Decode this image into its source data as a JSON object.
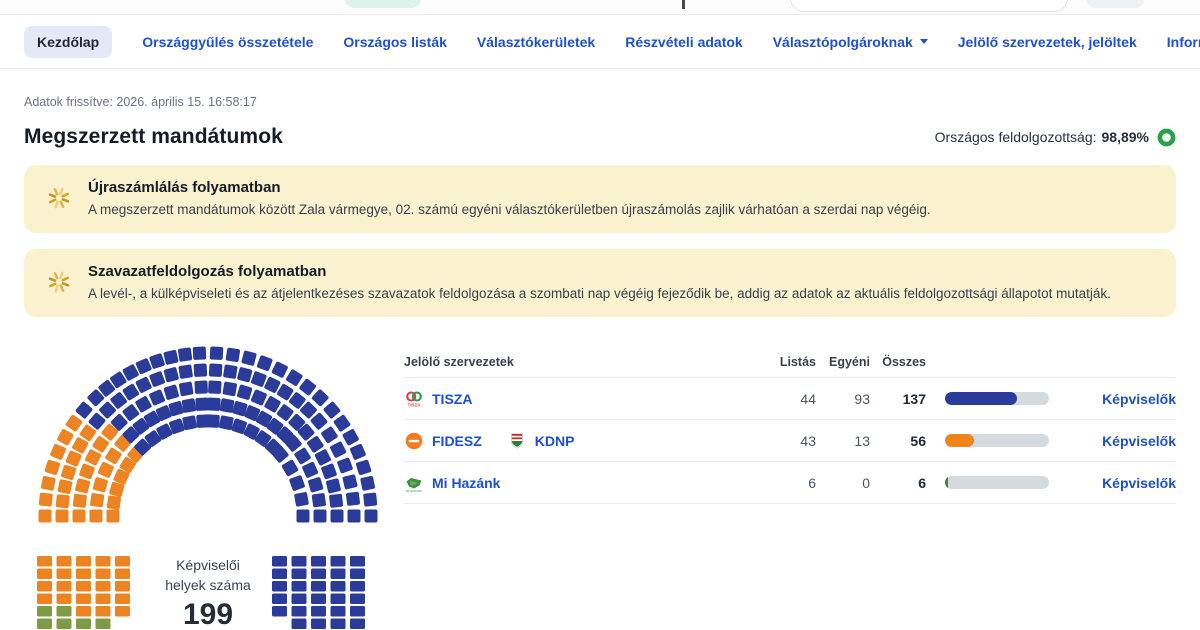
{
  "colors": {
    "nav_link": "#1D4FD8",
    "nav_active_bg": "#E4E9F7",
    "alert_bg": "#FAF1CF",
    "alert_icon": "#D9A41B",
    "ring_green": "#28A149",
    "bar_track": "#D5DADF",
    "seat_blue": "#2A3B99",
    "seat_orange": "#EC8424",
    "seat_green": "#7D9B44"
  },
  "nav": {
    "items": [
      {
        "label": "Kezdőlap",
        "active": true,
        "dropdown": false
      },
      {
        "label": "Országgyűlés összetétele",
        "active": false,
        "dropdown": false
      },
      {
        "label": "Országos listák",
        "active": false,
        "dropdown": false
      },
      {
        "label": "Választókerületek",
        "active": false,
        "dropdown": false
      },
      {
        "label": "Részvételi adatok",
        "active": false,
        "dropdown": false
      },
      {
        "label": "Választópolgároknak",
        "active": false,
        "dropdown": true
      },
      {
        "label": "Jelölő szervezetek, jelöltek",
        "active": false,
        "dropdown": false
      },
      {
        "label": "Információk",
        "active": false,
        "dropdown": true
      }
    ]
  },
  "meta": {
    "updated": "Adatok frissítve: 2026. április 15. 16:58:17"
  },
  "page": {
    "title": "Megszerzett mandátumok",
    "processing_label": "Országos feldolgozottság:",
    "processing_value": "98,89%"
  },
  "alerts": [
    {
      "title": "Újraszámlálás folyamatban",
      "body": "A megszerzett mandátumok között Zala vármegye, 02. számú egyéni választókerületben újraszámolás zajlik várhatóan a szerdai nap végéig."
    },
    {
      "title": "Szavazatfeldolgozás folyamatban",
      "body": "A levél-, a külképviseleti és az átjelentkezéses szavazatok feldolgozása a szombati nap végéig fejeződik be, addig az adatok az aktuális feldolgozottsági állapotot mutatják."
    }
  ],
  "table": {
    "headers": {
      "org": "Jelölő szervezetek",
      "list": "Listás",
      "individual": "Egyéni",
      "total": "Összes"
    },
    "link_label": "Képviselők",
    "rows": [
      {
        "parties": [
          {
            "name": "TISZA",
            "logo": "tisza"
          }
        ],
        "list": "44",
        "individual": "93",
        "total": "137",
        "bar_color": "#2A3B99",
        "bar_pct": 68.8
      },
      {
        "parties": [
          {
            "name": "FIDESZ",
            "logo": "fidesz"
          },
          {
            "name": "KDNP",
            "logo": "kdnp"
          }
        ],
        "list": "43",
        "individual": "13",
        "total": "56",
        "bar_color": "#F08418",
        "bar_pct": 28.1
      },
      {
        "parties": [
          {
            "name": "Mi Hazánk",
            "logo": "mihazank"
          }
        ],
        "list": "6",
        "individual": "0",
        "total": "6",
        "bar_color": "#4E7D37",
        "bar_pct": 3.0
      }
    ]
  },
  "chart_data": {
    "type": "parliament-hemicycle",
    "title_lines": [
      "Képviselői",
      "helyek száma"
    ],
    "total_seats": "199",
    "parties": [
      {
        "name": "TISZA",
        "seats": 137,
        "color": "#2A3B99"
      },
      {
        "name": "FIDESZ-KDNP",
        "seats": 56,
        "color": "#EC8424"
      },
      {
        "name": "Mi Hazánk",
        "seats": 6,
        "color": "#7D9B44"
      }
    ],
    "arc": {
      "row_counts": [
        23,
        26,
        28,
        31,
        33
      ],
      "aisle_deg": 6,
      "sectors": 4,
      "fill": [
        [
          "#EC8424",
          33
        ],
        [
          "#2A3B99",
          108
        ]
      ]
    },
    "block_colors": {
      "O": "#EC8424",
      "G": "#7D9B44",
      "B": "#2A3B99"
    },
    "left_block": [
      "OOOOO",
      "OOOOO",
      "OOOOO",
      "OOOOO",
      "GGOOO",
      "GGGG."
    ],
    "right_block": [
      "BBBBB",
      "BBBBB",
      "BBBBB",
      "BBBBB",
      "BBBBB",
      ".BBBB"
    ]
  }
}
